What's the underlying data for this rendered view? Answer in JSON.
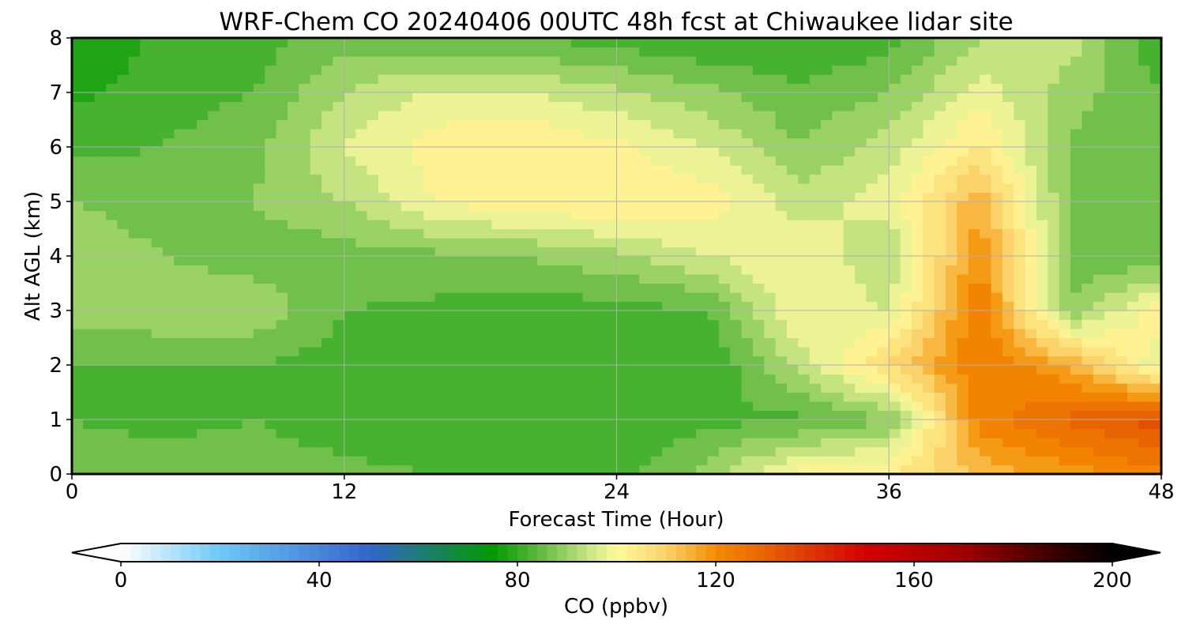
{
  "chart_data": {
    "type": "heatmap",
    "title": "WRF-Chem CO  20240406 00UTC 48h fcst at Chiwaukee lidar site",
    "xlabel": "Forecast Time (Hour)",
    "ylabel": "Alt AGL (km)",
    "xlim": [
      0,
      48
    ],
    "ylim": [
      0,
      8
    ],
    "xticks": [
      0,
      12,
      24,
      36,
      48
    ],
    "yticks": [
      0,
      1,
      2,
      3,
      4,
      5,
      6,
      7,
      8
    ],
    "grid": true,
    "x": [
      0,
      4,
      8,
      12,
      16,
      20,
      24,
      28,
      32,
      36,
      40,
      44,
      48
    ],
    "y": [
      0,
      1,
      2,
      3,
      4,
      5,
      6,
      7,
      8
    ],
    "z": [
      [
        86,
        86,
        86,
        85,
        84,
        83,
        82,
        90,
        102,
        104,
        113,
        118,
        123
      ],
      [
        84,
        83,
        84,
        82,
        81,
        81,
        80,
        83,
        83,
        88,
        122,
        129,
        134
      ],
      [
        84,
        84,
        84,
        82,
        82,
        82,
        82,
        80,
        93,
        108,
        124,
        116,
        96
      ],
      [
        90,
        91,
        91,
        84,
        83,
        82,
        82,
        84,
        100,
        96,
        124,
        88,
        104
      ],
      [
        91,
        88,
        86,
        86,
        87,
        88,
        91,
        96,
        100,
        92,
        120,
        86,
        84
      ],
      [
        88,
        86,
        88,
        92,
        100,
        103,
        104,
        102,
        94,
        98,
        115,
        87,
        85
      ],
      [
        83,
        84,
        87,
        96,
        102,
        104,
        101,
        96,
        88,
        94,
        105,
        87,
        85
      ],
      [
        79,
        82,
        84,
        92,
        97,
        96,
        93,
        89,
        85,
        88,
        98,
        90,
        84
      ],
      [
        76,
        81,
        82,
        86,
        85,
        84,
        82,
        80,
        80,
        82,
        92,
        94,
        80
      ]
    ],
    "colorbar": {
      "label": "CO  (ppbv)",
      "min": 0,
      "max": 200,
      "ticks": [
        0,
        40,
        80,
        120,
        160,
        200
      ],
      "extend": "both",
      "stops": [
        {
          "v": 0,
          "c": "#ffffff"
        },
        {
          "v": 20,
          "c": "#6ec8f5"
        },
        {
          "v": 50,
          "c": "#3366cc"
        },
        {
          "v": 75,
          "c": "#009a00"
        },
        {
          "v": 85,
          "c": "#66bb44"
        },
        {
          "v": 95,
          "c": "#cfe888"
        },
        {
          "v": 100,
          "c": "#fffa9c"
        },
        {
          "v": 110,
          "c": "#fbd36a"
        },
        {
          "v": 120,
          "c": "#f48c00"
        },
        {
          "v": 130,
          "c": "#e86400"
        },
        {
          "v": 150,
          "c": "#d40000"
        },
        {
          "v": 170,
          "c": "#a00000"
        },
        {
          "v": 190,
          "c": "#300000"
        },
        {
          "v": 200,
          "c": "#000000"
        }
      ]
    }
  }
}
